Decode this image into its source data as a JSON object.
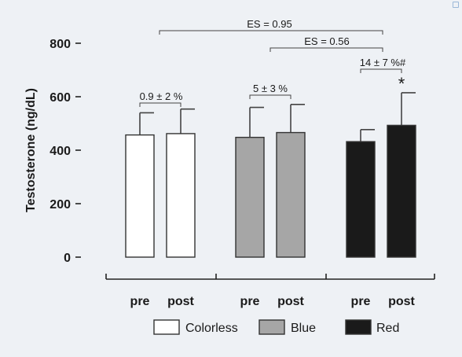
{
  "chart_data": {
    "type": "bar",
    "ylabel": "Testosterone (ng/dL)",
    "xlabel": "",
    "ylim": [
      0,
      800
    ],
    "yticks": [
      0,
      200,
      400,
      600,
      800
    ],
    "groups": [
      {
        "name": "Colorless",
        "color": "#ffffff",
        "bars": [
          {
            "label": "pre",
            "value": 457,
            "error": 83
          },
          {
            "label": "post",
            "value": 462,
            "error": 92
          }
        ]
      },
      {
        "name": "Blue",
        "color": "#a6a6a6",
        "bars": [
          {
            "label": "pre",
            "value": 448,
            "error": 112
          },
          {
            "label": "post",
            "value": 466,
            "error": 105
          }
        ]
      },
      {
        "name": "Red",
        "color": "#1a1a1a",
        "bars": [
          {
            "label": "pre",
            "value": 432,
            "error": 45
          },
          {
            "label": "post",
            "value": 493,
            "error": 122
          }
        ]
      }
    ],
    "annotations": {
      "colorless_change": "0.9 ± 2 %",
      "blue_change": "5 ± 3 %",
      "red_change": "14 ± 7 %#",
      "es_red_vs_colorless": "ES = 0.95",
      "es_red_vs_blue": "ES = 0.56",
      "significance": "*"
    },
    "legend": [
      "Colorless",
      "Blue",
      "Red"
    ],
    "legend_position": "bottom",
    "grid": false
  }
}
